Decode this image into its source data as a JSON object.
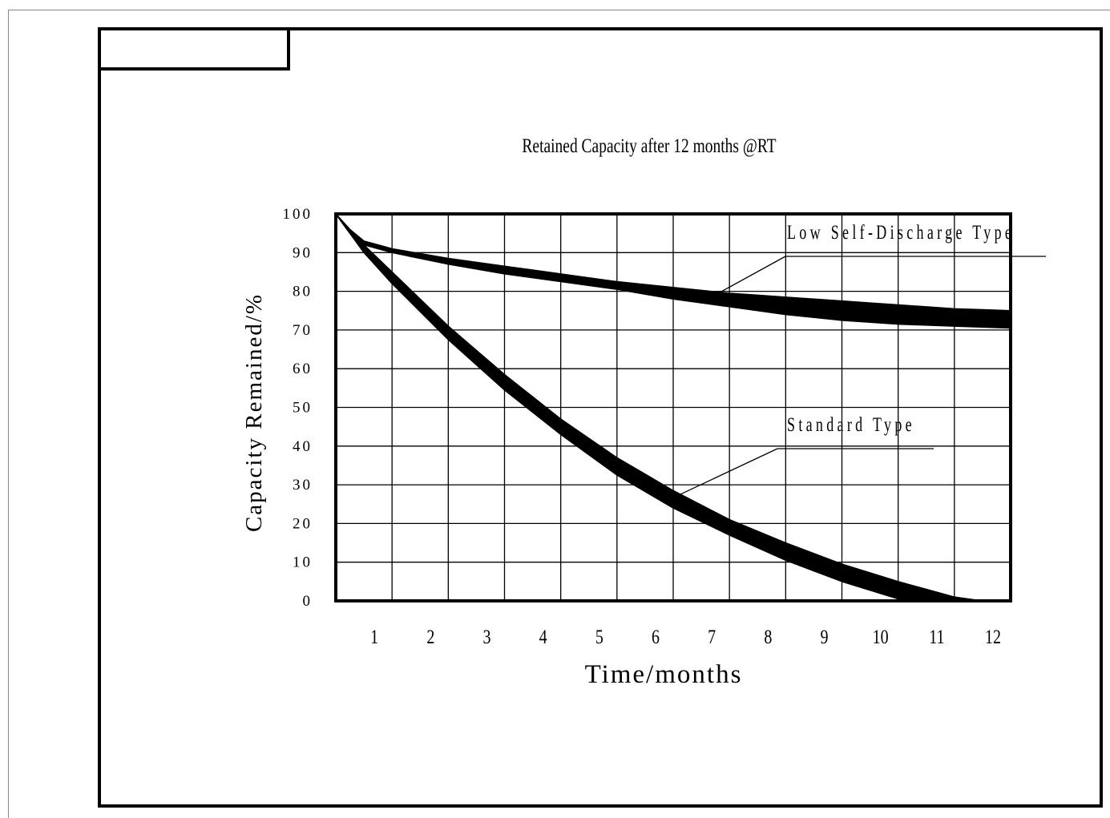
{
  "chart_data": {
    "type": "area",
    "title": "Retained Capacity after 12 months @RT",
    "xlabel": "Time/months",
    "ylabel": "Capacity Remained/%",
    "xlim": [
      0,
      12
    ],
    "ylim": [
      0,
      100
    ],
    "x_ticks": [
      "1",
      "2",
      "3",
      "4",
      "5",
      "6",
      "7",
      "8",
      "9",
      "10",
      "11",
      "12"
    ],
    "y_ticks": [
      "0",
      "10",
      "20",
      "30",
      "40",
      "50",
      "60",
      "70",
      "80",
      "90",
      "100"
    ],
    "grid": true,
    "series": [
      {
        "name": "Low Self-Discharge Type",
        "x": [
          0,
          0.25,
          0.5,
          1,
          2,
          3,
          4,
          5,
          6,
          7,
          8,
          9,
          10,
          11,
          12
        ],
        "upper": [
          100,
          96,
          93,
          91,
          88.5,
          86.5,
          84.5,
          82.5,
          81,
          79.5,
          78.5,
          77.5,
          76.5,
          75.5,
          75
        ],
        "lower": [
          100,
          95,
          92,
          90,
          87,
          84.5,
          82.5,
          80.5,
          78,
          76,
          74,
          72.5,
          71.5,
          71,
          70.5
        ]
      },
      {
        "name": "Standard Type",
        "x": [
          0,
          0.5,
          1,
          2,
          3,
          4,
          5,
          6,
          7,
          8,
          9,
          10,
          10.5,
          11,
          11.5,
          12
        ],
        "upper": [
          100,
          92,
          85,
          71,
          58.5,
          47,
          37,
          28.5,
          21,
          15,
          9.5,
          5,
          3,
          1,
          0,
          0
        ],
        "lower": [
          100,
          90,
          82,
          67.5,
          54.5,
          43,
          32.5,
          24,
          17,
          10.5,
          5,
          0.5,
          0,
          0,
          0,
          0
        ]
      }
    ],
    "annotations": [
      {
        "text": "Low Self-Discharge Type",
        "points_to": "Low Self-Discharge Type",
        "at_x": 6.7
      },
      {
        "text": "Standard Type",
        "points_to": "Standard Type",
        "at_x": 6
      }
    ]
  }
}
